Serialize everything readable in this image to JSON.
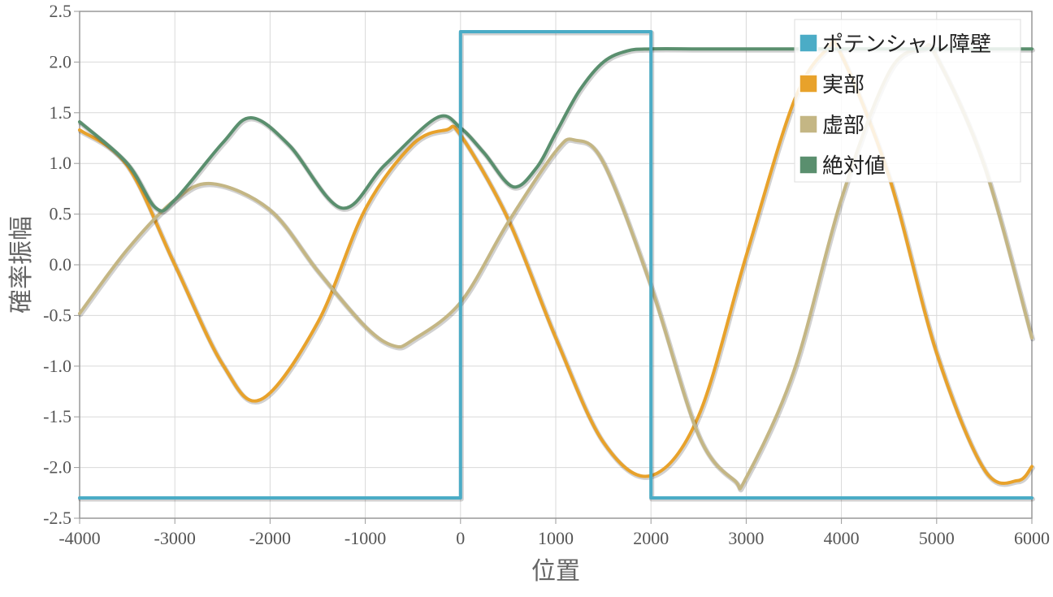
{
  "chart_data": {
    "type": "line",
    "title": "",
    "xlabel": "位置",
    "ylabel": "確率振幅",
    "xlim": [
      -4000,
      6000
    ],
    "ylim": [
      -2.5,
      2.5
    ],
    "x_ticks": [
      -4000,
      -3000,
      -2000,
      -1000,
      0,
      1000,
      2000,
      3000,
      4000,
      5000,
      6000
    ],
    "y_ticks": [
      -2.5,
      -2.0,
      -1.5,
      -1.0,
      -0.5,
      0.0,
      0.5,
      1.0,
      1.5,
      2.0,
      2.5
    ],
    "x_tick_labels": [
      "-4000",
      "-3000",
      "-2000",
      "-1000",
      "0",
      "1000",
      "2000",
      "3000",
      "4000",
      "5000",
      "6000"
    ],
    "y_tick_labels": [
      "-2.5",
      "-2.0",
      "-1.5",
      "-1.0",
      "-0.5",
      "0.0",
      "0.5",
      "1.0",
      "1.5",
      "2.0",
      "2.5"
    ],
    "grid": true,
    "legend_position": "top-right",
    "series": [
      {
        "name": "ポテンシャル障壁",
        "color": "#4bacc6",
        "x": [
          -4000,
          0,
          0,
          2000,
          2000,
          6000
        ],
        "y": [
          -2.3,
          -2.3,
          2.3,
          2.3,
          -2.3,
          -2.3
        ]
      },
      {
        "name": "実部",
        "color": "#e8a22b",
        "x": [
          -4000,
          -3500,
          -3000,
          -2500,
          -2100,
          -1500,
          -1000,
          -500,
          -150,
          0,
          500,
          1000,
          1500,
          2000,
          2500,
          3000,
          3500,
          3850,
          4000,
          4500,
          5000,
          5500,
          5850,
          6000
        ],
        "y": [
          1.33,
          0.98,
          0.0,
          -0.98,
          -1.33,
          -0.57,
          0.55,
          1.19,
          1.33,
          1.28,
          0.45,
          -0.72,
          -1.75,
          -2.08,
          -1.49,
          0.09,
          1.61,
          2.13,
          2.07,
          0.87,
          -0.87,
          -2.02,
          -2.13,
          -1.99
        ]
      },
      {
        "name": "虚部",
        "color": "#c4b684",
        "x": [
          -4000,
          -3500,
          -3000,
          -2600,
          -2000,
          -1500,
          -1000,
          -700,
          -500,
          0,
          500,
          1000,
          1200,
          1500,
          2000,
          2500,
          2880,
          3000,
          3500,
          4000,
          4500,
          4850,
          5000,
          5500,
          6000
        ],
        "y": [
          -0.48,
          0.15,
          0.64,
          0.8,
          0.54,
          -0.06,
          -0.61,
          -0.8,
          -0.74,
          -0.37,
          0.42,
          1.12,
          1.23,
          1.01,
          -0.21,
          -1.68,
          -2.13,
          -2.1,
          -1.05,
          0.65,
          1.9,
          2.13,
          2.05,
          0.98,
          -0.72
        ]
      },
      {
        "name": "絶対値",
        "color": "#5a8f6e",
        "x": [
          -4000,
          -3500,
          -3200,
          -3000,
          -2500,
          -2200,
          -1800,
          -1250,
          -800,
          -250,
          0,
          250,
          550,
          800,
          1000,
          1250,
          1500,
          1750,
          2000,
          2500,
          3000,
          4000,
          5000,
          6000
        ],
        "y": [
          1.41,
          1.0,
          0.56,
          0.64,
          1.2,
          1.45,
          1.18,
          0.56,
          0.98,
          1.45,
          1.35,
          1.1,
          0.77,
          0.96,
          1.3,
          1.72,
          2.0,
          2.11,
          2.13,
          2.13,
          2.13,
          2.13,
          2.13,
          2.13
        ]
      }
    ]
  }
}
